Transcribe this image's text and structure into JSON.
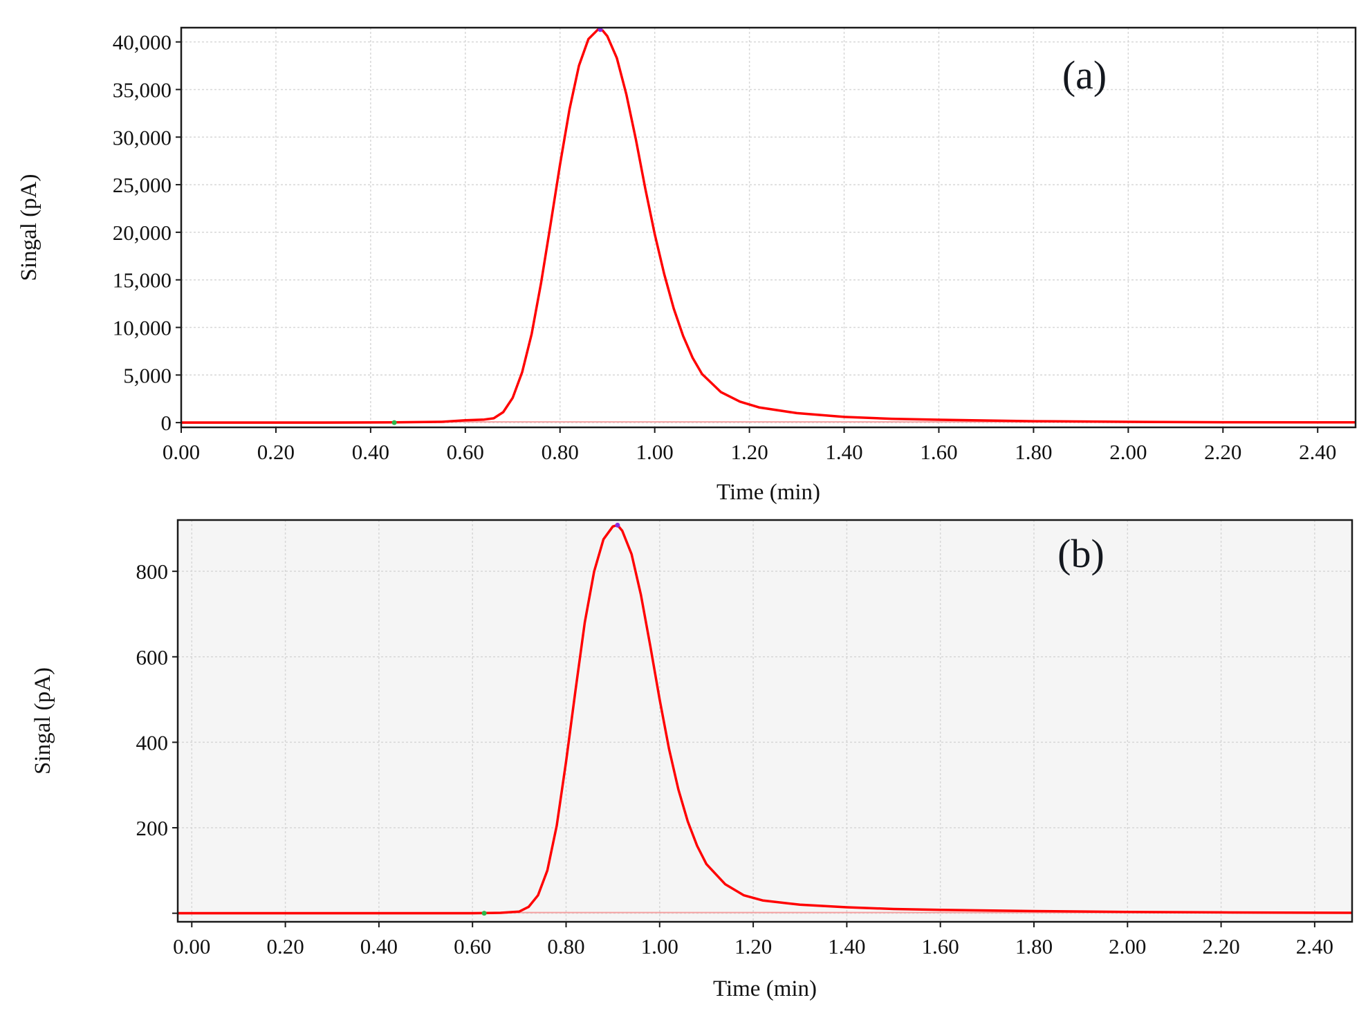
{
  "chart_data": [
    {
      "type": "line",
      "panel_label": "(a)",
      "xlabel": "Time (min)",
      "ylabel": "Singal (pA)",
      "xlim": [
        0.0,
        2.48
      ],
      "ylim": [
        -500,
        41500
      ],
      "xticks": [
        0.0,
        0.2,
        0.4,
        0.6,
        0.8,
        1.0,
        1.2,
        1.4,
        1.6,
        1.8,
        2.0,
        2.2,
        2.4
      ],
      "xtick_labels": [
        "0.00",
        "0.20",
        "0.40",
        "0.60",
        "0.80",
        "1.00",
        "1.20",
        "1.40",
        "1.60",
        "1.80",
        "2.00",
        "2.20",
        "2.40"
      ],
      "yticks": [
        0,
        5000,
        10000,
        15000,
        20000,
        25000,
        30000,
        35000,
        40000
      ],
      "ytick_labels": [
        "0",
        "5,000",
        "10,000",
        "15,000",
        "20,000",
        "25,000",
        "30,000",
        "35,000",
        "40,000"
      ],
      "grid": true,
      "background": "#ffffff",
      "series": [
        {
          "color": "#ff0000",
          "x": [
            0.0,
            0.3,
            0.45,
            0.55,
            0.6,
            0.64,
            0.66,
            0.68,
            0.7,
            0.72,
            0.74,
            0.76,
            0.78,
            0.8,
            0.82,
            0.84,
            0.86,
            0.88,
            0.89,
            0.9,
            0.92,
            0.94,
            0.96,
            0.98,
            1.0,
            1.02,
            1.04,
            1.06,
            1.08,
            1.1,
            1.14,
            1.18,
            1.22,
            1.3,
            1.4,
            1.5,
            1.6,
            1.8,
            2.0,
            2.2,
            2.48
          ],
          "y": [
            0,
            0,
            20,
            80,
            250,
            320,
            450,
            1100,
            2600,
            5300,
            9300,
            14700,
            20800,
            27100,
            32900,
            37500,
            40300,
            41300,
            41200,
            40600,
            38300,
            34500,
            29800,
            24600,
            19800,
            15600,
            12000,
            9100,
            6800,
            5100,
            3200,
            2200,
            1600,
            1000,
            600,
            400,
            300,
            150,
            80,
            40,
            20
          ]
        }
      ],
      "markers": [
        {
          "x": 0.45,
          "y": 0,
          "color": "#2db84a"
        },
        {
          "x": 0.885,
          "y": 41300,
          "color": "#8a2be2"
        }
      ]
    },
    {
      "type": "line",
      "panel_label": "(b)",
      "xlabel": "Time (min)",
      "ylabel": "Singal (pA)",
      "xlim": [
        -0.03,
        2.48
      ],
      "ylim": [
        -20,
        920
      ],
      "xticks": [
        0.0,
        0.2,
        0.4,
        0.6,
        0.8,
        1.0,
        1.2,
        1.4,
        1.6,
        1.8,
        2.0,
        2.2,
        2.4
      ],
      "xtick_labels": [
        "0.00",
        "0.20",
        "0.40",
        "0.60",
        "0.80",
        "1.00",
        "1.20",
        "1.40",
        "1.60",
        "1.80",
        "2.00",
        "2.20",
        "2.40"
      ],
      "yticks": [
        0,
        200,
        400,
        600,
        800
      ],
      "ytick_labels": [
        "",
        "200",
        "400",
        "600",
        "800"
      ],
      "grid": true,
      "background": "#f5f5f5",
      "series": [
        {
          "color": "#ff0000",
          "x": [
            -0.03,
            0.3,
            0.6,
            0.66,
            0.7,
            0.72,
            0.74,
            0.76,
            0.78,
            0.8,
            0.82,
            0.84,
            0.86,
            0.88,
            0.9,
            0.91,
            0.92,
            0.94,
            0.96,
            0.98,
            1.0,
            1.02,
            1.04,
            1.06,
            1.08,
            1.1,
            1.14,
            1.18,
            1.22,
            1.3,
            1.4,
            1.5,
            1.6,
            1.8,
            2.0,
            2.2,
            2.48
          ],
          "y": [
            0,
            0,
            0,
            1,
            4,
            15,
            42,
            100,
            205,
            355,
            520,
            680,
            800,
            875,
            905,
            908,
            895,
            840,
            745,
            625,
            500,
            385,
            290,
            215,
            158,
            115,
            68,
            42,
            30,
            20,
            14,
            10,
            8,
            5,
            3,
            2,
            1
          ]
        }
      ],
      "markers": [
        {
          "x": 0.625,
          "y": 0,
          "color": "#2db84a"
        },
        {
          "x": 0.91,
          "y": 908,
          "color": "#8a2be2"
        }
      ]
    }
  ]
}
